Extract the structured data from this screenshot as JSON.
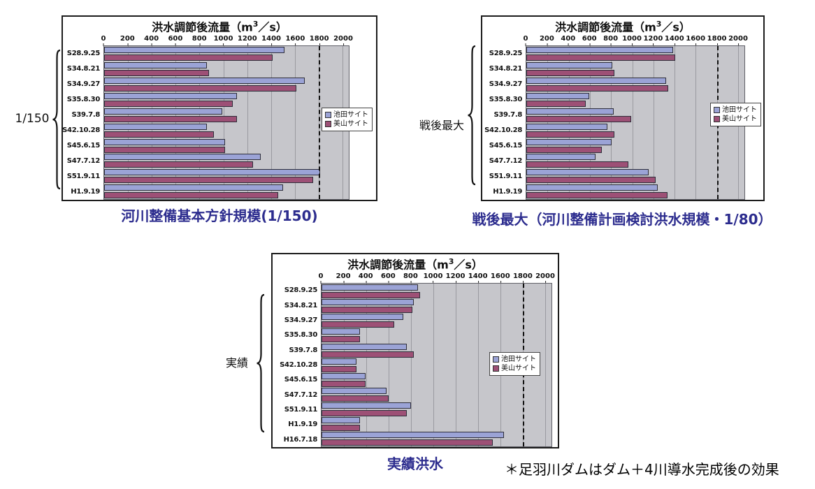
{
  "colors": {
    "ikeda_site": "#9ba3d6",
    "miyama_site": "#9d5076",
    "plot_background": "#c6c6cb",
    "caption_text": "#2c2c8e",
    "threshold_line": "#111111"
  },
  "footnote": "＊足羽川ダムはダム＋4川導水完成後の効果",
  "chart_data": [
    {
      "type": "bar",
      "orientation": "horizontal",
      "title": "洪水調節後流量（m3／s）",
      "title_parts": {
        "pre": "洪水調節後流量（m",
        "sup": "3",
        "post": "／s）"
      },
      "caption": "河川整備基本方針規模(1/150)",
      "group_label": "1/150",
      "axis": {
        "min": 0,
        "max": 2000,
        "tick_labels": [
          "0",
          "200",
          "400",
          "600",
          "800",
          "1000",
          "1200",
          "1400",
          "1600",
          "1800",
          "2000"
        ]
      },
      "threshold": 1800,
      "legend_position": "right",
      "categories": [
        "S28.9.25",
        "S34.8.21",
        "S34.9.27",
        "S35.8.30",
        "S39.7.8",
        "S42.10.28",
        "S45.6.15",
        "S47.7.12",
        "S51.9.11",
        "H1.9.19"
      ],
      "series": [
        {
          "name": "池田サイト",
          "color": "#9ba3d6",
          "values": [
            1500,
            850,
            1670,
            1100,
            980,
            850,
            1000,
            1300,
            1800,
            1490
          ]
        },
        {
          "name": "美山サイト",
          "color": "#9d5076",
          "values": [
            1400,
            870,
            1600,
            1070,
            1100,
            910,
            1000,
            1240,
            1740,
            1450
          ]
        }
      ]
    },
    {
      "type": "bar",
      "orientation": "horizontal",
      "title": "洪水調節後流量（m3／s）",
      "title_parts": {
        "pre": "洪水調節後流量（m",
        "sup": "3",
        "post": "／s）"
      },
      "caption": "戦後最大（河川整備計画検討洪水規模・1/80）",
      "group_label": "戦後最大",
      "axis": {
        "min": 0,
        "max": 2000,
        "tick_labels": [
          "0",
          "200",
          "400",
          "600",
          "800",
          "1000",
          "1200",
          "1400",
          "1600",
          "1800",
          "2000"
        ]
      },
      "threshold": 1800,
      "legend_position": "right",
      "categories": [
        "S28.9.25",
        "S34.8.21",
        "S34.9.27",
        "S35.8.30",
        "S39.7.8",
        "S42.10.28",
        "S45.6.15",
        "S47.7.12",
        "S51.9.11",
        "H1.9.19"
      ],
      "series": [
        {
          "name": "池田サイト",
          "color": "#9ba3d6",
          "values": [
            1370,
            800,
            1310,
            580,
            810,
            750,
            790,
            640,
            1140,
            1230
          ]
        },
        {
          "name": "美山サイト",
          "color": "#9d5076",
          "values": [
            1390,
            820,
            1330,
            550,
            980,
            820,
            700,
            950,
            1210,
            1320
          ]
        }
      ]
    },
    {
      "type": "bar",
      "orientation": "horizontal",
      "title": "洪水調節後流量（m3／s）",
      "title_parts": {
        "pre": "洪水調節後流量（m",
        "sup": "3",
        "post": "／s）"
      },
      "caption": "実績洪水",
      "group_label": "実績",
      "axis": {
        "min": 0,
        "max": 2000,
        "tick_labels": [
          "0",
          "200",
          "400",
          "600",
          "800",
          "1000",
          "1200",
          "1400",
          "1600",
          "1800",
          "2000"
        ]
      },
      "threshold": 1800,
      "legend_position": "right",
      "categories": [
        "S28.9.25",
        "S34.8.21",
        "S34.9.27",
        "S35.8.30",
        "S39.7.8",
        "S42.10.28",
        "S45.6.15",
        "S47.7.12",
        "S51.9.11",
        "H1.9.19",
        "H16.7.18"
      ],
      "series": [
        {
          "name": "池田サイト",
          "color": "#9ba3d6",
          "values": [
            850,
            810,
            720,
            330,
            750,
            300,
            380,
            570,
            790,
            330,
            1620
          ]
        },
        {
          "name": "美山サイト",
          "color": "#9d5076",
          "values": [
            870,
            800,
            640,
            330,
            810,
            300,
            380,
            590,
            750,
            330,
            1520
          ]
        }
      ]
    }
  ]
}
